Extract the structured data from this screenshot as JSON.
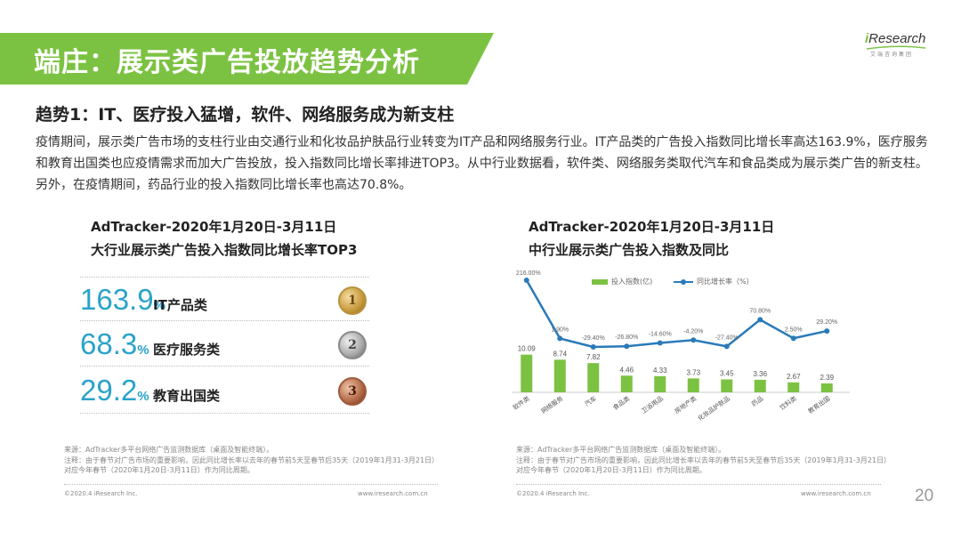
{
  "header": {
    "title": "端庄：展示类广告投放趋势分析"
  },
  "logo": {
    "brand_i": "i",
    "brand_rest": "Research",
    "sub": "艾瑞咨询集团"
  },
  "heading": "趋势1：IT、医疗投入猛增，软件、网络服务成为新支柱",
  "body": "疫情期间，展示类广告市场的支柱行业由交通行业和化妆品护肤品行业转变为IT产品和网络服务行业。IT产品类的广告投入指数同比增长率高达163.9%，医疗服务和教育出国类也应疫情需求而加大广告投放，投入指数同比增长率排进TOP3。从中行业数据看，软件类、网络服务类取代汽车和食品类成为展示类广告的新支柱。另外，在疫情期间，药品行业的投入指数同比增长率也高达70.8%。",
  "left_panel": {
    "title_line1": "AdTracker-2020年1月20日-3月11日",
    "title_line2": "大行业展示类广告投入指数同比增长率TOP3",
    "items": [
      {
        "value": "163.9",
        "unit": "%",
        "label": "IT产品类",
        "medal": "1"
      },
      {
        "value": "68.3",
        "unit": "%",
        "label": "医疗服务类",
        "medal": "2"
      },
      {
        "value": "29.2",
        "unit": "%",
        "label": "教育出国类",
        "medal": "3"
      }
    ],
    "note_source": "来源：AdTracker多平台网络广告监测数据库（桌面及智能终端）。",
    "note_comment": "注释：由于春节对广告市场的重要影响，因此同比增长率以去年的春节前5天至春节后35天（2019年1月31-3月21日）对应今年春节（2020年1月20日-3月11日）作为同比周期。",
    "footer_left": "©2020.4 iResearch Inc.",
    "footer_right": "www.iresearch.com.cn"
  },
  "right_panel": {
    "title_line1": "AdTracker-2020年1月20日-3月11日",
    "title_line2": "中行业展示类广告投入指数及同比",
    "legend_bar": "投入指数(亿)",
    "legend_line": "同比增长率（%）",
    "note_source": "来源：AdTracker多平台网络广告监测数据库（桌面及智能终端）。",
    "note_comment": "注释：由于春节对广告市场的重要影响，因此同比增长率以去年的春节前5天至春节后35天（2019年1月31-3月21日）对应今年春节（2020年1月20日-3月11日）作为同比周期。",
    "footer_left": "©2020.4 iResearch Inc.",
    "footer_right": "www.iresearch.com.cn"
  },
  "page_number": "20",
  "colors": {
    "green": "#7cc242",
    "blue": "#2a7ab8",
    "teal": "#2aa3c8"
  },
  "chart_data": {
    "type": "bar",
    "categories": [
      "软件类",
      "网络服务",
      "汽车",
      "食品类",
      "卫浴用品",
      "房地产类",
      "化妆品护肤品",
      "药品",
      "饮料类",
      "教育出国"
    ],
    "series": [
      {
        "name": "投入指数(亿)",
        "type": "bar",
        "values": [
          10.09,
          8.74,
          7.82,
          4.46,
          4.33,
          3.73,
          3.45,
          3.36,
          2.67,
          2.39
        ],
        "labels": [
          "10.09",
          "8.74",
          "7.82",
          "4.46",
          "4.33",
          "3.73",
          "3.45",
          "3.36",
          "2.67",
          "2.39"
        ]
      },
      {
        "name": "同比增长率（%）",
        "type": "line",
        "values": [
          216.0,
          1.9,
          -29.4,
          -26.8,
          -14.6,
          -4.2,
          -27.4,
          70.8,
          2.5,
          29.2
        ],
        "labels": [
          "216.00%",
          "1.90%",
          "-29.40%",
          "-26.80%",
          "-14.60%",
          "-4.20%",
          "-27.40%",
          "70.80%",
          "2.50%",
          "29.20%"
        ]
      }
    ]
  }
}
